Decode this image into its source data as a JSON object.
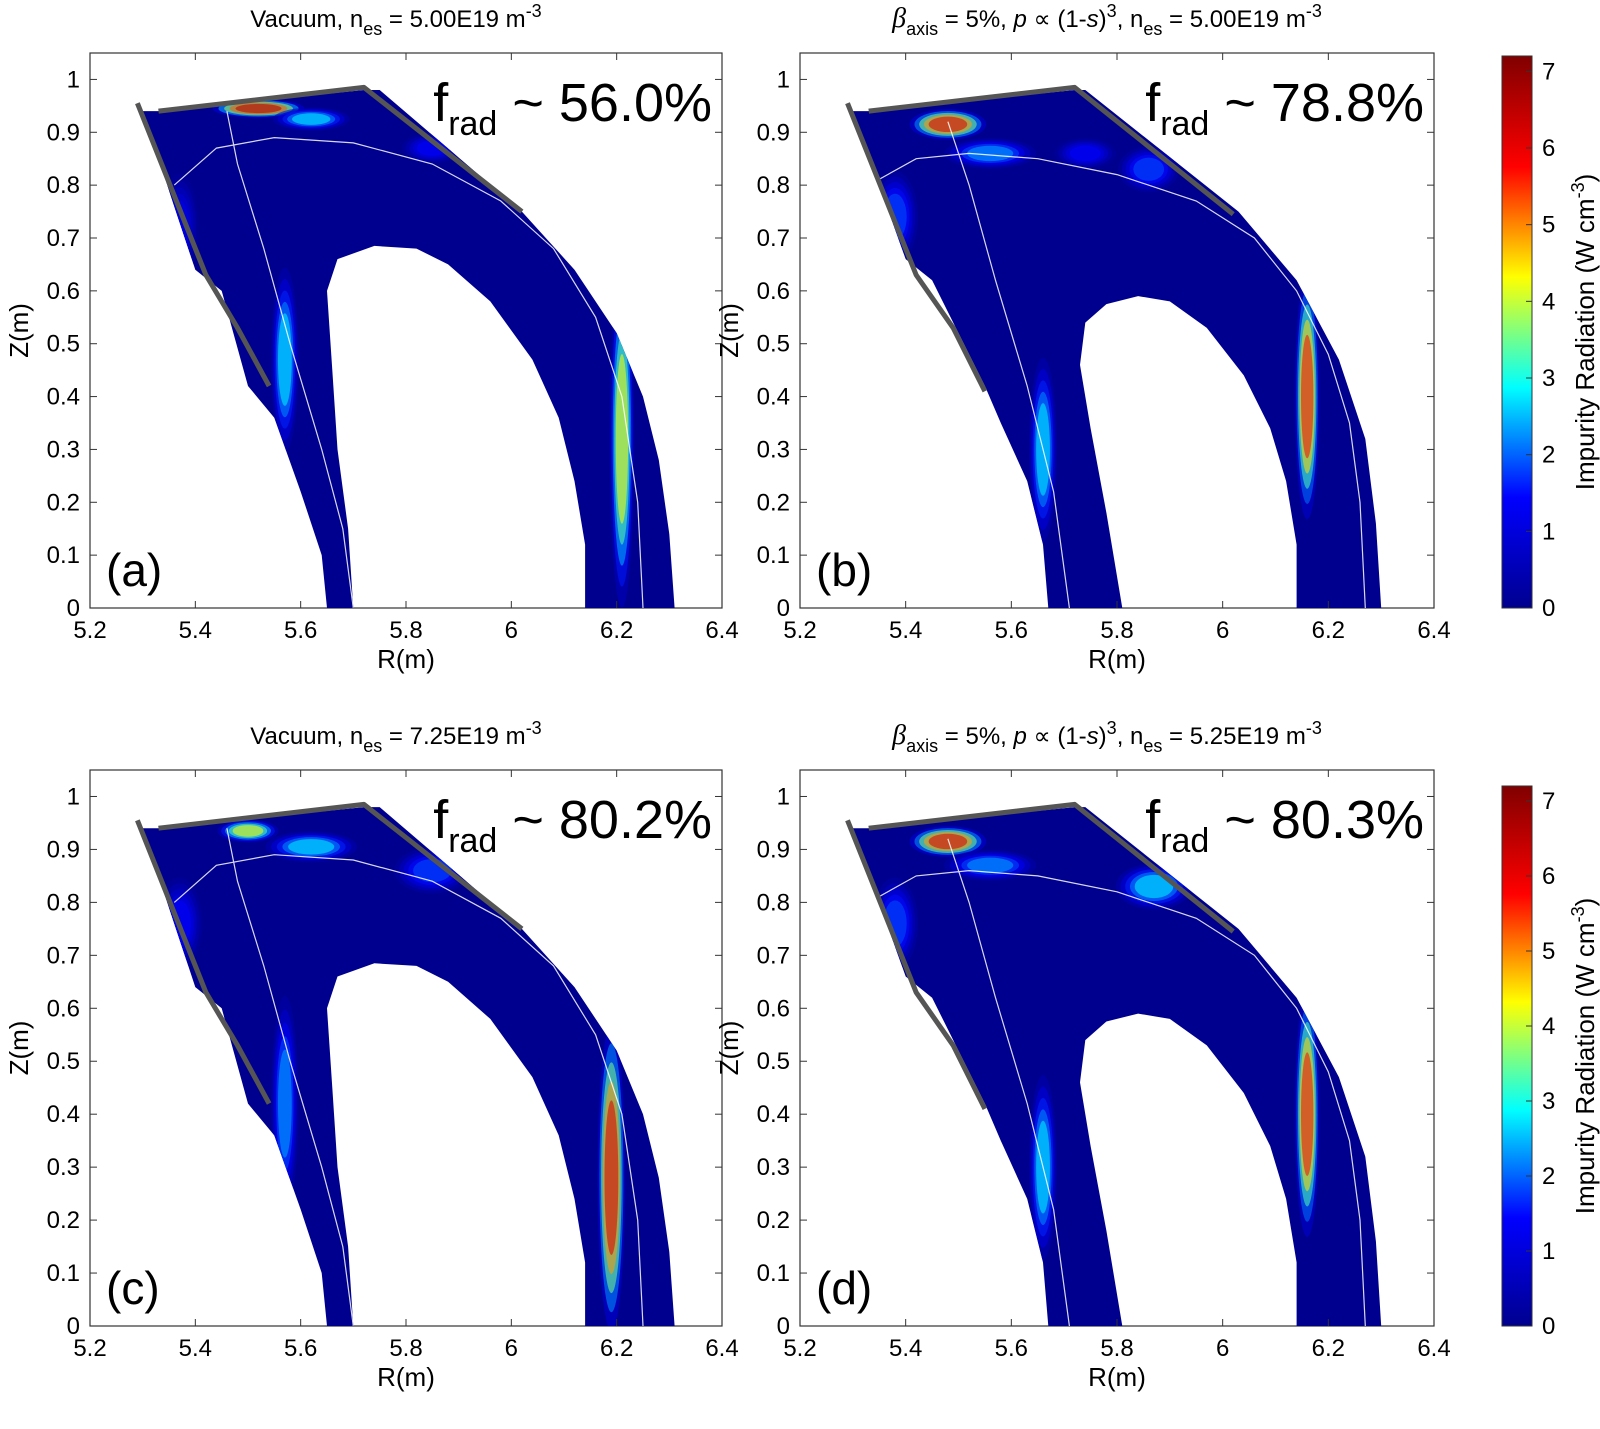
{
  "chart_data": [
    {
      "type": "heatmap",
      "panel_label": "(a)",
      "title": {
        "pre": "Vacuum, n",
        "sub": "es",
        "mid": " = 5.00E19 m",
        "sup": "-3"
      },
      "frad": {
        "pre": "f",
        "sub": "rad",
        "post": " ~ 56.0%"
      },
      "xlabel": "R(m)",
      "ylabel": "Z(m)",
      "xlim": [
        5.2,
        6.4
      ],
      "ylim": [
        0,
        1.05
      ],
      "xticks": [
        "5.2",
        "5.4",
        "5.6",
        "5.8",
        "6",
        "6.2",
        "6.4"
      ],
      "yticks": [
        "0",
        "0.1",
        "0.2",
        "0.3",
        "0.4",
        "0.5",
        "0.6",
        "0.7",
        "0.8",
        "0.9",
        "1"
      ],
      "hotspots": [
        {
          "r": 5.52,
          "z": 0.945,
          "w": 0.06,
          "h": 0.012,
          "value": 7.0
        },
        {
          "r": 5.62,
          "z": 0.925,
          "w": 0.05,
          "h": 0.015,
          "value": 3.0
        },
        {
          "r": 5.85,
          "z": 0.87,
          "w": 0.04,
          "h": 0.02,
          "value": 1.5
        },
        {
          "r": 5.37,
          "z": 0.72,
          "w": 0.025,
          "h": 0.07,
          "value": 1.2
        },
        {
          "r": 5.57,
          "z": 0.47,
          "w": 0.018,
          "h": 0.12,
          "value": 3.0
        },
        {
          "r": 6.21,
          "z": 0.32,
          "w": 0.016,
          "h": 0.22,
          "value": 4.5
        }
      ]
    },
    {
      "type": "heatmap",
      "panel_label": "(b)",
      "title": {
        "beta": "β",
        "betasub": "axis",
        "mid1": " = 5%, ",
        "p": "p",
        "prop": " ∝ (1-",
        "s": "s",
        "close": ")",
        "cube": "3",
        "mid2": ", n",
        "sub": "es",
        "mid3": " = 5.00E19 m",
        "sup": "-3"
      },
      "frad": {
        "pre": "f",
        "sub": "rad",
        "post": " ~ 78.8%"
      },
      "xlabel": "R(m)",
      "ylabel": "Z(m)",
      "xlim": [
        5.2,
        6.4
      ],
      "ylim": [
        0,
        1.05
      ],
      "xticks": [
        "5.2",
        "5.4",
        "5.6",
        "5.8",
        "6",
        "6.2",
        "6.4"
      ],
      "yticks": [
        "0",
        "0.1",
        "0.2",
        "0.3",
        "0.4",
        "0.5",
        "0.6",
        "0.7",
        "0.8",
        "0.9",
        "1"
      ],
      "hotspots": [
        {
          "r": 5.48,
          "z": 0.915,
          "w": 0.05,
          "h": 0.02,
          "value": 6.5
        },
        {
          "r": 5.56,
          "z": 0.86,
          "w": 0.06,
          "h": 0.02,
          "value": 2.5
        },
        {
          "r": 5.74,
          "z": 0.86,
          "w": 0.04,
          "h": 0.02,
          "value": 1.5
        },
        {
          "r": 5.86,
          "z": 0.83,
          "w": 0.04,
          "h": 0.03,
          "value": 2.0
        },
        {
          "r": 5.38,
          "z": 0.74,
          "w": 0.03,
          "h": 0.06,
          "value": 2.0
        },
        {
          "r": 5.66,
          "z": 0.3,
          "w": 0.018,
          "h": 0.12,
          "value": 3.0
        },
        {
          "r": 6.16,
          "z": 0.4,
          "w": 0.016,
          "h": 0.16,
          "value": 6.0
        }
      ]
    },
    {
      "type": "heatmap",
      "panel_label": "(c)",
      "title": {
        "pre": "Vacuum, n",
        "sub": "es",
        "mid": " = 7.25E19 m",
        "sup": "-3"
      },
      "frad": {
        "pre": "f",
        "sub": "rad",
        "post": " ~ 80.2%"
      },
      "xlabel": "R(m)",
      "ylabel": "Z(m)",
      "xlim": [
        5.2,
        6.4
      ],
      "ylim": [
        0,
        1.05
      ],
      "xticks": [
        "5.2",
        "5.4",
        "5.6",
        "5.8",
        "6",
        "6.2",
        "6.4"
      ],
      "yticks": [
        "0",
        "0.1",
        "0.2",
        "0.3",
        "0.4",
        "0.5",
        "0.6",
        "0.7",
        "0.8",
        "0.9",
        "1"
      ],
      "hotspots": [
        {
          "r": 5.5,
          "z": 0.935,
          "w": 0.04,
          "h": 0.015,
          "value": 4.5
        },
        {
          "r": 5.62,
          "z": 0.905,
          "w": 0.06,
          "h": 0.02,
          "value": 3.0
        },
        {
          "r": 5.85,
          "z": 0.86,
          "w": 0.05,
          "h": 0.03,
          "value": 2.0
        },
        {
          "r": 5.37,
          "z": 0.76,
          "w": 0.03,
          "h": 0.06,
          "value": 1.5
        },
        {
          "r": 5.57,
          "z": 0.42,
          "w": 0.018,
          "h": 0.14,
          "value": 2.5
        },
        {
          "r": 6.19,
          "z": 0.28,
          "w": 0.018,
          "h": 0.2,
          "value": 6.5
        }
      ]
    },
    {
      "type": "heatmap",
      "panel_label": "(d)",
      "title": {
        "beta": "β",
        "betasub": "axis",
        "mid1": " = 5%, ",
        "p": "p",
        "prop": " ∝ (1-",
        "s": "s",
        "close": ")",
        "cube": "3",
        "mid2": ", n",
        "sub": "es",
        "mid3": " = 5.25E19 m",
        "sup": "-3"
      },
      "frad": {
        "pre": "f",
        "sub": "rad",
        "post": " ~ 80.3%"
      },
      "xlabel": "R(m)",
      "ylabel": "Z(m)",
      "xlim": [
        5.2,
        6.4
      ],
      "ylim": [
        0,
        1.05
      ],
      "xticks": [
        "5.2",
        "5.4",
        "5.6",
        "5.8",
        "6",
        "6.2",
        "6.4"
      ],
      "yticks": [
        "0",
        "0.1",
        "0.2",
        "0.3",
        "0.4",
        "0.5",
        "0.6",
        "0.7",
        "0.8",
        "0.9",
        "1"
      ],
      "hotspots": [
        {
          "r": 5.48,
          "z": 0.915,
          "w": 0.05,
          "h": 0.02,
          "value": 6.5
        },
        {
          "r": 5.56,
          "z": 0.87,
          "w": 0.06,
          "h": 0.02,
          "value": 2.5
        },
        {
          "r": 5.87,
          "z": 0.83,
          "w": 0.05,
          "h": 0.03,
          "value": 3.0
        },
        {
          "r": 5.38,
          "z": 0.76,
          "w": 0.03,
          "h": 0.06,
          "value": 2.0
        },
        {
          "r": 5.66,
          "z": 0.3,
          "w": 0.018,
          "h": 0.12,
          "value": 3.0
        },
        {
          "r": 6.16,
          "z": 0.4,
          "w": 0.016,
          "h": 0.16,
          "value": 6.0
        }
      ]
    }
  ],
  "colorbar": {
    "label": "Impurity Radiation (W cm",
    "label_sup": "-3",
    "label_close": ")",
    "range": [
      0,
      7.2
    ],
    "ticks": [
      "0",
      "1",
      "2",
      "3",
      "4",
      "5",
      "6",
      "7"
    ],
    "colors": [
      "#00008f",
      "#0000ff",
      "#00ffff",
      "#ffff00",
      "#ff0000",
      "#800000"
    ]
  },
  "colors": {
    "plasma_background": "#00008f",
    "wall": "#555555"
  }
}
